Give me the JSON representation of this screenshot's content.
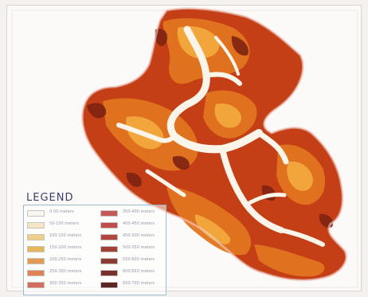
{
  "legend": {
    "title": "LEGEND",
    "items": [
      {
        "label": "0-50 meters",
        "color": "#fbf6ef"
      },
      {
        "label": "50-100 meters",
        "color": "#f6e6c6"
      },
      {
        "label": "100-150 meters",
        "color": "#eed08a"
      },
      {
        "label": "150-200 meters",
        "color": "#e6b65a"
      },
      {
        "label": "200-250 meters",
        "color": "#e39a52"
      },
      {
        "label": "250-300 meters",
        "color": "#df8258"
      },
      {
        "label": "300-350 meters",
        "color": "#d56c60"
      },
      {
        "label": "350-400 meters",
        "color": "#c55858"
      },
      {
        "label": "400-450 meters",
        "color": "#c14c4c"
      },
      {
        "label": "450-500 meters",
        "color": "#b3473f"
      },
      {
        "label": "500-550 meters",
        "color": "#a24038"
      },
      {
        "label": "550-600 meters",
        "color": "#8e3a34"
      },
      {
        "label": "600-650 meters",
        "color": "#7a312c"
      },
      {
        "label": "650-700 meters",
        "color": "#5c2422"
      }
    ]
  }
}
